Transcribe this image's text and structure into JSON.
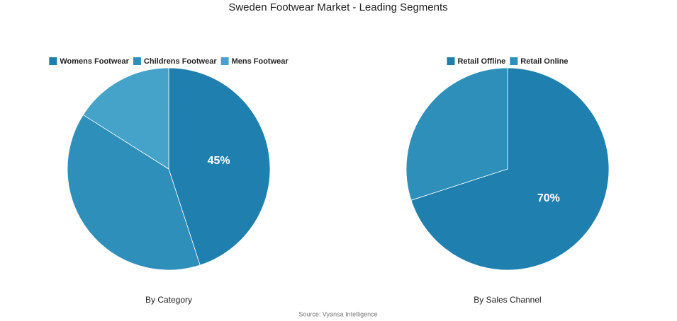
{
  "title": "Sweden Footwear Market - Leading Segments",
  "source": "Source: Vyansa Intelligence",
  "chart_data": [
    {
      "type": "pie",
      "caption": "By Category",
      "categories": [
        "Womens Footwear",
        "Childrens Footwear",
        "Mens Footwear"
      ],
      "values": [
        45,
        39,
        16
      ],
      "value_labels": [
        "45%",
        null,
        null
      ],
      "colors": [
        "#1f7fae",
        "#2e8fba",
        "#45a2c8"
      ]
    },
    {
      "type": "pie",
      "caption": "By Sales Channel",
      "categories": [
        "Retail Offline",
        "Retail Online"
      ],
      "values": [
        70,
        30
      ],
      "value_labels": [
        "70%",
        null
      ],
      "colors": [
        "#1f7fae",
        "#2e8fba"
      ]
    }
  ]
}
